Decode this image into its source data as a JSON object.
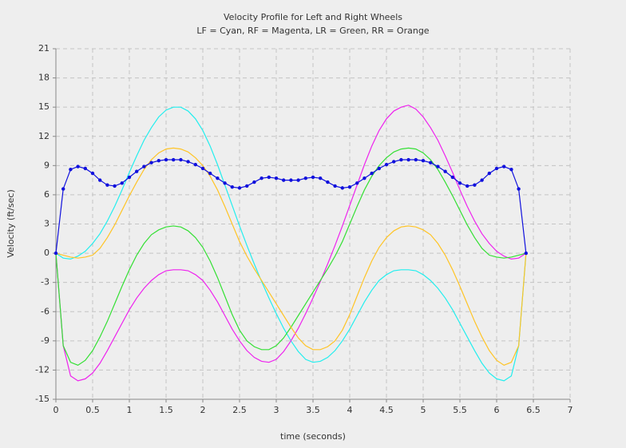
{
  "chart_data": {
    "type": "line",
    "title": "Velocity Profile for Left and Right Wheels",
    "subtitle": "LF = Cyan, RF = Magenta, LR = Green, RR = Orange",
    "x_label": "time (seconds)",
    "y_label": "Velocity (ft/sec)",
    "xlim": [
      0,
      7
    ],
    "ylim": [
      -15,
      21
    ],
    "xticks": [
      0,
      0.5,
      1,
      1.5,
      2,
      2.5,
      3,
      3.5,
      4,
      4.5,
      5,
      5.5,
      6,
      6.5,
      7
    ],
    "yticks": [
      -15,
      -12,
      -9,
      -6,
      -3,
      0,
      3,
      6,
      9,
      12,
      15,
      18,
      21
    ],
    "grid": true,
    "x": [
      0,
      0.1,
      0.2,
      0.3,
      0.4,
      0.5,
      0.6,
      0.7,
      0.8,
      0.9,
      1,
      1.1,
      1.2,
      1.3,
      1.4,
      1.5,
      1.6,
      1.7,
      1.8,
      1.9,
      2,
      2.1,
      2.2,
      2.3,
      2.4,
      2.5,
      2.6,
      2.7,
      2.8,
      2.9,
      3,
      3.1,
      3.2,
      3.3,
      3.4,
      3.5,
      3.6,
      3.7,
      3.8,
      3.9,
      4,
      4.1,
      4.2,
      4.3,
      4.4,
      4.5,
      4.6,
      4.7,
      4.8,
      4.9,
      5,
      5.1,
      5.2,
      5.3,
      5.4,
      5.5,
      5.6,
      5.7,
      5.8,
      5.9,
      6,
      6.1,
      6.2,
      6.3,
      6.4
    ],
    "series": [
      {
        "color": "#22eeee",
        "markers": false,
        "values": [
          0,
          -0.5,
          -0.6,
          -0.3,
          0.2,
          1.0,
          2.0,
          3.3,
          4.8,
          6.5,
          8.3,
          10.0,
          11.6,
          12.9,
          14.0,
          14.7,
          15.0,
          15.0,
          14.6,
          13.8,
          12.6,
          11.0,
          9.1,
          7.0,
          4.9,
          2.8,
          0.8,
          -1.1,
          -2.9,
          -4.6,
          -6.2,
          -7.7,
          -9.0,
          -10.1,
          -10.9,
          -11.2,
          -11.1,
          -10.7,
          -10.0,
          -9.0,
          -7.8,
          -6.4,
          -5.0,
          -3.8,
          -2.8,
          -2.2,
          -1.8,
          -1.7,
          -1.7,
          -1.8,
          -2.2,
          -2.8,
          -3.6,
          -4.6,
          -5.8,
          -7.2,
          -8.6,
          -10.0,
          -11.3,
          -12.3,
          -12.9,
          -13.1,
          -12.6,
          -9.5,
          0
        ]
      },
      {
        "color": "#ee22ee",
        "markers": false,
        "values": [
          0,
          -9.5,
          -12.6,
          -13.1,
          -12.9,
          -12.3,
          -11.3,
          -10.0,
          -8.6,
          -7.2,
          -5.8,
          -4.6,
          -3.6,
          -2.8,
          -2.2,
          -1.8,
          -1.7,
          -1.7,
          -1.8,
          -2.2,
          -2.8,
          -3.8,
          -5.0,
          -6.4,
          -7.8,
          -9.0,
          -10.0,
          -10.7,
          -11.1,
          -11.2,
          -10.9,
          -10.1,
          -9.0,
          -7.7,
          -6.2,
          -4.6,
          -2.9,
          -1.1,
          0.8,
          2.8,
          4.9,
          7.0,
          9.1,
          11.0,
          12.6,
          13.8,
          14.6,
          15.0,
          15.2,
          14.8,
          14.0,
          12.9,
          11.6,
          10.0,
          8.3,
          6.5,
          4.8,
          3.3,
          2.0,
          1.0,
          0.2,
          -0.3,
          -0.6,
          -0.5,
          0
        ]
      },
      {
        "color": "#33e033",
        "markers": false,
        "values": [
          0,
          -9.5,
          -11.2,
          -11.5,
          -11.0,
          -10.0,
          -8.6,
          -7.0,
          -5.2,
          -3.4,
          -1.7,
          -0.2,
          1.0,
          1.9,
          2.4,
          2.7,
          2.8,
          2.7,
          2.3,
          1.6,
          0.6,
          -0.8,
          -2.5,
          -4.4,
          -6.3,
          -7.9,
          -9.0,
          -9.6,
          -9.9,
          -9.9,
          -9.5,
          -8.7,
          -7.6,
          -6.4,
          -5.2,
          -4.0,
          -2.8,
          -1.6,
          -0.3,
          1.2,
          3.0,
          4.8,
          6.5,
          7.9,
          9.0,
          9.8,
          10.4,
          10.7,
          10.8,
          10.7,
          10.3,
          9.6,
          8.6,
          7.3,
          5.9,
          4.4,
          2.9,
          1.6,
          0.5,
          -0.2,
          -0.4,
          -0.5,
          -0.4,
          -0.2,
          0
        ]
      },
      {
        "color": "#ffc425",
        "markers": false,
        "values": [
          0,
          -0.2,
          -0.4,
          -0.5,
          -0.4,
          -0.2,
          0.5,
          1.6,
          2.9,
          4.4,
          5.9,
          7.3,
          8.6,
          9.6,
          10.3,
          10.7,
          10.8,
          10.7,
          10.4,
          9.8,
          9.0,
          7.9,
          6.5,
          4.8,
          3.0,
          1.2,
          -0.3,
          -1.6,
          -2.8,
          -4.0,
          -5.2,
          -6.4,
          -7.6,
          -8.7,
          -9.5,
          -9.9,
          -9.9,
          -9.6,
          -9.0,
          -7.9,
          -6.3,
          -4.4,
          -2.5,
          -0.8,
          0.6,
          1.6,
          2.3,
          2.7,
          2.8,
          2.7,
          2.4,
          1.9,
          1.0,
          -0.2,
          -1.7,
          -3.4,
          -5.2,
          -7.0,
          -8.6,
          -10.0,
          -11.0,
          -11.5,
          -11.2,
          -9.5,
          0
        ]
      },
      {
        "color": "#1010dd",
        "markers": true,
        "values": [
          0,
          6.6,
          8.6,
          8.9,
          8.7,
          8.2,
          7.5,
          7.0,
          6.9,
          7.2,
          7.8,
          8.4,
          8.9,
          9.3,
          9.5,
          9.6,
          9.6,
          9.6,
          9.4,
          9.1,
          8.7,
          8.2,
          7.7,
          7.2,
          6.8,
          6.7,
          6.9,
          7.3,
          7.7,
          7.8,
          7.7,
          7.5,
          7.5,
          7.5,
          7.7,
          7.8,
          7.7,
          7.3,
          6.9,
          6.7,
          6.8,
          7.2,
          7.7,
          8.2,
          8.7,
          9.1,
          9.4,
          9.6,
          9.6,
          9.6,
          9.5,
          9.3,
          8.9,
          8.4,
          7.8,
          7.2,
          6.9,
          7.0,
          7.5,
          8.2,
          8.7,
          8.9,
          8.6,
          6.6,
          0
        ]
      }
    ]
  }
}
